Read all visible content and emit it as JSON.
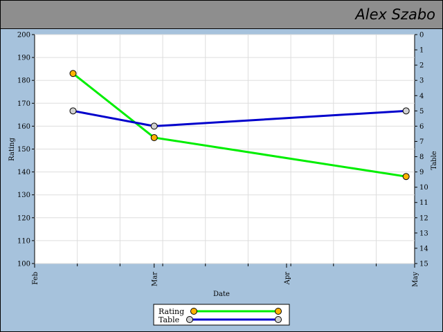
{
  "header": {
    "title": "Alex Szabo"
  },
  "chart_data": {
    "type": "line",
    "title": "",
    "xlabel": "Date",
    "ylabel": "Rating",
    "y2label": "Table",
    "x_ticks": [
      "Feb",
      "Mar",
      "Apr",
      "May"
    ],
    "x_range": [
      "2021-02-01",
      "2021-05-01"
    ],
    "ylim": [
      100,
      200
    ],
    "y_ticks": [
      100,
      110,
      120,
      130,
      140,
      150,
      160,
      170,
      180,
      190,
      200
    ],
    "y2lim": [
      15,
      0
    ],
    "y2_inverted": true,
    "y2_ticks": [
      0,
      1,
      2,
      3,
      4,
      5,
      6,
      7,
      8,
      9,
      10,
      11,
      12,
      13,
      14,
      15
    ],
    "grid": true,
    "legend_placement": "bottom-center",
    "series": [
      {
        "name": "Rating",
        "axis": "left",
        "color": "#00ee00",
        "marker_color": "#ffb300",
        "points": [
          {
            "x": "2021-02-10",
            "y": 183
          },
          {
            "x": "2021-03-01",
            "y": 155
          },
          {
            "x": "2021-04-29",
            "y": 138
          }
        ]
      },
      {
        "name": "Table",
        "axis": "right",
        "color": "#0000cc",
        "marker_color": "#d0d0d0",
        "points": [
          {
            "x": "2021-02-10",
            "y": 5
          },
          {
            "x": "2021-03-01",
            "y": 6
          },
          {
            "x": "2021-04-29",
            "y": 5
          }
        ]
      }
    ]
  }
}
